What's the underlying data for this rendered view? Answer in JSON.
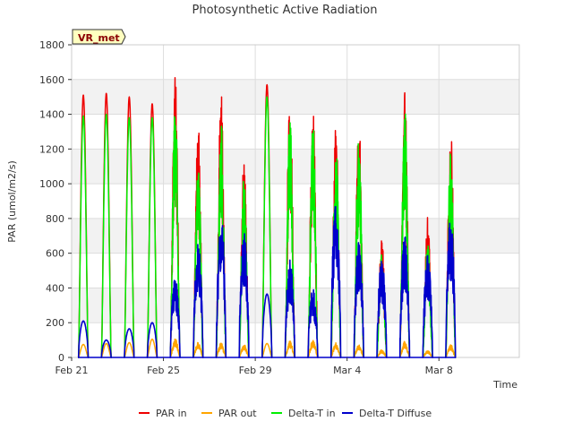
{
  "chart_data": {
    "type": "line",
    "title": "Photosynthetic Active Radiation",
    "xlabel": "Time",
    "ylabel": "PAR (umol/m2/s)",
    "site_label": "VR_met",
    "ylim": [
      0,
      1800
    ],
    "yticks": [
      0,
      200,
      400,
      600,
      800,
      1000,
      1200,
      1400,
      1600,
      1800
    ],
    "xlim": [
      "2024-02-21T00:00",
      "2024-03-11T12:00"
    ],
    "xticks": [
      {
        "date": "2024-02-21",
        "label": "Feb 21"
      },
      {
        "date": "2024-02-25",
        "label": "Feb 25"
      },
      {
        "date": "2024-02-29",
        "label": "Feb 29"
      },
      {
        "date": "2024-03-04",
        "label": "Mar 4"
      },
      {
        "date": "2024-03-08",
        "label": "Mar 8"
      }
    ],
    "grid": true,
    "legend_position": "bottom",
    "series": [
      {
        "name": "PAR in",
        "color": "#ee0000"
      },
      {
        "name": "PAR out",
        "color": "#ffa500"
      },
      {
        "name": "Delta-T in",
        "color": "#00ee00"
      },
      {
        "name": "Delta-T Diffuse",
        "color": "#0000cc"
      }
    ],
    "daily": [
      {
        "date": "2024-02-21",
        "par_in": 1510,
        "par_out": 75,
        "dt_in": 1390,
        "diffuse": 210
      },
      {
        "date": "2024-02-22",
        "par_in": 1520,
        "par_out": 80,
        "dt_in": 1400,
        "diffuse": 100
      },
      {
        "date": "2024-02-23",
        "par_in": 1500,
        "par_out": 85,
        "dt_in": 1380,
        "diffuse": 165
      },
      {
        "date": "2024-02-24",
        "par_in": 1460,
        "par_out": 105,
        "dt_in": 1380,
        "diffuse": 200
      },
      {
        "date": "2024-02-25",
        "par_in": 1640,
        "par_out": 110,
        "dt_in": 1520,
        "diffuse": 470
      },
      {
        "date": "2024-02-26",
        "par_in": 1350,
        "par_out": 90,
        "dt_in": 1210,
        "diffuse": 665
      },
      {
        "date": "2024-02-27",
        "par_in": 1540,
        "par_out": 85,
        "dt_in": 1400,
        "diffuse": 820
      },
      {
        "date": "2024-02-28",
        "par_in": 1150,
        "par_out": 75,
        "dt_in": 1080,
        "diffuse": 740
      },
      {
        "date": "2024-02-29",
        "par_in": 1570,
        "par_out": 80,
        "dt_in": 1500,
        "diffuse": 365
      },
      {
        "date": "2024-03-01",
        "par_in": 1600,
        "par_out": 95,
        "dt_in": 1510,
        "diffuse": 565
      },
      {
        "date": "2024-03-02",
        "par_in": 1525,
        "par_out": 100,
        "dt_in": 1420,
        "diffuse": 405
      },
      {
        "date": "2024-03-03",
        "par_in": 1410,
        "par_out": 90,
        "dt_in": 1270,
        "diffuse": 940
      },
      {
        "date": "2024-03-04",
        "par_in": 1450,
        "par_out": 80,
        "dt_in": 1340,
        "diffuse": 665
      },
      {
        "date": "2024-03-05",
        "par_in": 690,
        "par_out": 45,
        "dt_in": 650,
        "diffuse": 570
      },
      {
        "date": "2024-03-06",
        "par_in": 1570,
        "par_out": 95,
        "dt_in": 1470,
        "diffuse": 700
      },
      {
        "date": "2024-03-07",
        "par_in": 810,
        "par_out": 40,
        "dt_in": 690,
        "diffuse": 590
      },
      {
        "date": "2024-03-08",
        "par_in": 1360,
        "par_out": 75,
        "dt_in": 1220,
        "diffuse": 800
      }
    ]
  }
}
